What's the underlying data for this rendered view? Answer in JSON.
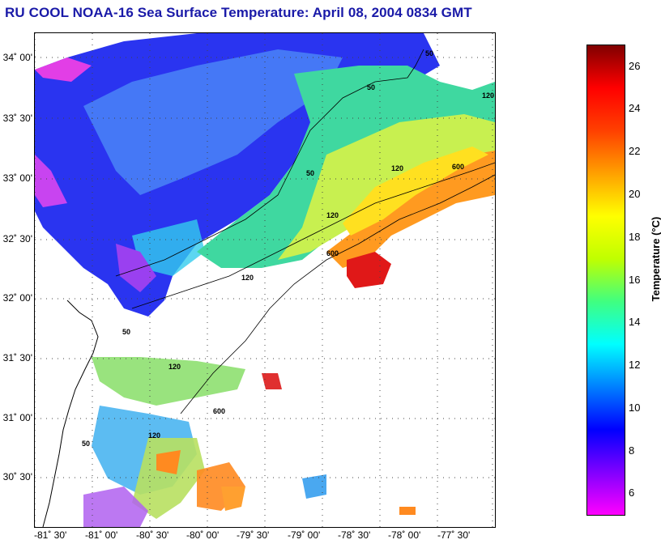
{
  "title": "RU COOL  NOAA-16  Sea Surface Temperature:  April 08, 2004 0834 GMT",
  "latitude_labels": [
    "34˚ 00'",
    "33˚ 30'",
    "33˚ 00'",
    "32˚ 30'",
    "32˚ 00'",
    "31˚ 30'",
    "31˚ 00'",
    "30˚ 30'"
  ],
  "longitude_labels": [
    "-81˚ 30'",
    "-81˚ 00'",
    "-80˚ 30'",
    "-80˚ 00'",
    "-79˚ 30'",
    "-79˚ 00'",
    "-78˚ 30'",
    "-78˚ 00'",
    "-77˚ 30'"
  ],
  "isobath_labels": [
    "50",
    "50",
    "50",
    "120",
    "120",
    "120",
    "600",
    "600",
    "120",
    "50",
    "120",
    "600",
    "50",
    "120"
  ],
  "colorbar": {
    "label": "Temperature (°C)",
    "ticks": [
      "26",
      "24",
      "22",
      "20",
      "18",
      "16",
      "14",
      "12",
      "10",
      "8",
      "6"
    ],
    "min": 5,
    "max": 27,
    "colors": [
      "#ff00ff",
      "#8000ff",
      "#0000ff",
      "#0080ff",
      "#00ffff",
      "#40ff80",
      "#c0ff00",
      "#ffff00",
      "#ffa000",
      "#ff4000",
      "#ff0000",
      "#800000"
    ]
  }
}
